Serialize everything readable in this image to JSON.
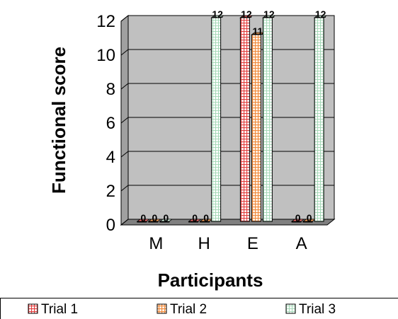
{
  "chart_data": {
    "type": "bar",
    "style": "3d-clustered-column",
    "title": "",
    "xlabel": "Participants",
    "ylabel": "Functional score",
    "categories": [
      "M",
      "H",
      "E",
      "A"
    ],
    "ylim": [
      0,
      12
    ],
    "yticks": [
      "0",
      "2",
      "4",
      "6",
      "8",
      "10",
      "12"
    ],
    "grid": true,
    "legend_position": "bottom",
    "series": [
      {
        "name": "Trial 1",
        "values": [
          0,
          0,
          12,
          0
        ],
        "labels": [
          "0",
          "0",
          "12",
          "0"
        ],
        "color": "#f26b6b",
        "pattern": "grid-red"
      },
      {
        "name": "Trial 2",
        "values": [
          0,
          0,
          11,
          0
        ],
        "labels": [
          "0",
          "0",
          "11",
          "0"
        ],
        "color": "#f7a15a",
        "pattern": "grid-orange"
      },
      {
        "name": "Trial 3",
        "values": [
          0,
          12,
          12,
          12
        ],
        "labels": [
          "0",
          "12",
          "12",
          "12"
        ],
        "color": "#d5f2df",
        "pattern": "grid-green"
      }
    ],
    "wall_color": "#c0c0c0",
    "floor_color": "#808080"
  }
}
